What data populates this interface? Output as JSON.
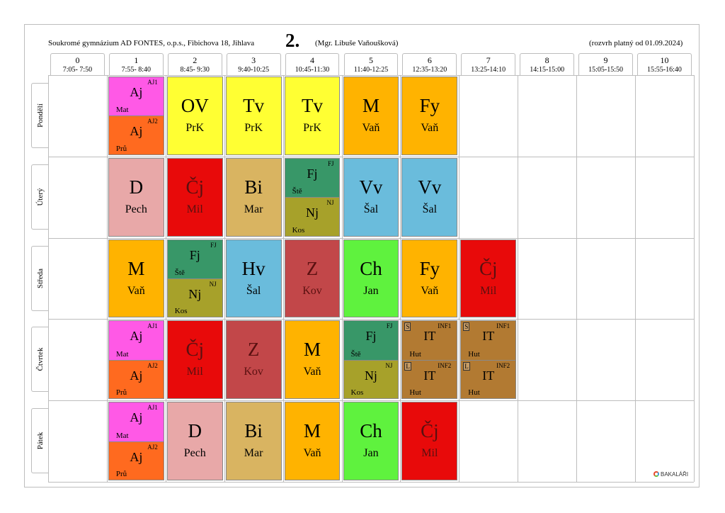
{
  "header": {
    "school": "Soukromé gymnázium AD FONTES, o.p.s., Fibichova 18, Jihlava",
    "class": "2.",
    "teacher": "(Mgr. Libuše Vaňoušková)",
    "valid_from": "(rozvrh platný od 01.09.2024)"
  },
  "periods": [
    {
      "num": "0",
      "time": "7:05- 7:50"
    },
    {
      "num": "1",
      "time": "7:55- 8:40"
    },
    {
      "num": "2",
      "time": "8:45- 9:30"
    },
    {
      "num": "3",
      "time": "9:40-10:25"
    },
    {
      "num": "4",
      "time": "10:45-11:30"
    },
    {
      "num": "5",
      "time": "11:40-12:25"
    },
    {
      "num": "6",
      "time": "12:35-13:20"
    },
    {
      "num": "7",
      "time": "13:25-14:10"
    },
    {
      "num": "8",
      "time": "14:15-15:00"
    },
    {
      "num": "9",
      "time": "15:05-15:50"
    },
    {
      "num": "10",
      "time": "15:55-16:40"
    }
  ],
  "days": [
    "Pondělí",
    "Úterý",
    "Středa",
    "Čtvrtek",
    "Pátek"
  ],
  "colors": {
    "Aj": "#ff59e6",
    "Aj2": "#ff6a1f",
    "OV": "#ffff33",
    "Tv": "#ffff33",
    "M": "#ffb300",
    "Fy": "#ffb300",
    "D": "#e8a8a8",
    "Cj": "#e80a0a",
    "Bi": "#d9b461",
    "Fj": "#389768",
    "Nj": "#a7a12a",
    "Vv": "#6abcdc",
    "Hv": "#6abcdc",
    "Z": "#c24749",
    "Ch": "#5ff23e",
    "IT": "#b27a32"
  },
  "schedule": [
    {
      "day": 0,
      "lessons": [
        {
          "period": 1,
          "color": "Aj",
          "type": "split",
          "top": {
            "group": "AJ1",
            "subject": "Aj",
            "teacher": "Mat",
            "color": "Aj"
          },
          "bottom": {
            "group": "AJ2",
            "subject": "Aj",
            "teacher": "Prů",
            "color": "Aj2"
          }
        },
        {
          "period": 2,
          "subject": "OV",
          "teacher": "PrK",
          "color": "OV"
        },
        {
          "period": 3,
          "subject": "Tv",
          "teacher": "PrK",
          "color": "Tv"
        },
        {
          "period": 4,
          "subject": "Tv",
          "teacher": "PrK",
          "color": "Tv"
        },
        {
          "period": 5,
          "subject": "M",
          "teacher": "Vaň",
          "color": "M"
        },
        {
          "period": 6,
          "subject": "Fy",
          "teacher": "Vaň",
          "color": "Fy"
        }
      ]
    },
    {
      "day": 1,
      "lessons": [
        {
          "period": 1,
          "subject": "D",
          "teacher": "Pech",
          "color": "D"
        },
        {
          "period": 2,
          "subject": "Čj",
          "teacher": "Mil",
          "color": "Cj",
          "darktext": true
        },
        {
          "period": 3,
          "subject": "Bi",
          "teacher": "Mar",
          "color": "Bi"
        },
        {
          "period": 4,
          "type": "split",
          "top": {
            "group": "FJ",
            "subject": "Fj",
            "teacher": "Ště",
            "color": "Fj"
          },
          "bottom": {
            "group": "NJ",
            "subject": "Nj",
            "teacher": "Kos",
            "color": "Nj"
          }
        },
        {
          "period": 5,
          "subject": "Vv",
          "teacher": "Šal",
          "color": "Vv"
        },
        {
          "period": 6,
          "subject": "Vv",
          "teacher": "Šal",
          "color": "Vv"
        }
      ]
    },
    {
      "day": 2,
      "lessons": [
        {
          "period": 1,
          "subject": "M",
          "teacher": "Vaň",
          "color": "M"
        },
        {
          "period": 2,
          "type": "split",
          "top": {
            "group": "FJ",
            "subject": "Fj",
            "teacher": "Ště",
            "color": "Fj"
          },
          "bottom": {
            "group": "NJ",
            "subject": "Nj",
            "teacher": "Kos",
            "color": "Nj"
          }
        },
        {
          "period": 3,
          "subject": "Hv",
          "teacher": "Šal",
          "color": "Hv"
        },
        {
          "period": 4,
          "subject": "Z",
          "teacher": "Kov",
          "color": "Z",
          "darktext": true
        },
        {
          "period": 5,
          "subject": "Ch",
          "teacher": "Jan",
          "color": "Ch"
        },
        {
          "period": 6,
          "subject": "Fy",
          "teacher": "Vaň",
          "color": "Fy"
        },
        {
          "period": 7,
          "subject": "Čj",
          "teacher": "Mil",
          "color": "Cj",
          "darktext": true
        }
      ]
    },
    {
      "day": 3,
      "lessons": [
        {
          "period": 1,
          "type": "split",
          "top": {
            "group": "AJ1",
            "subject": "Aj",
            "teacher": "Mat",
            "color": "Aj"
          },
          "bottom": {
            "group": "AJ2",
            "subject": "Aj",
            "teacher": "Prů",
            "color": "Aj2"
          }
        },
        {
          "period": 2,
          "subject": "Čj",
          "teacher": "Mil",
          "color": "Cj",
          "darktext": true
        },
        {
          "period": 3,
          "subject": "Z",
          "teacher": "Kov",
          "color": "Z",
          "darktext": true
        },
        {
          "period": 4,
          "subject": "M",
          "teacher": "Vaň",
          "color": "M"
        },
        {
          "period": 5,
          "type": "split",
          "top": {
            "group": "FJ",
            "subject": "Fj",
            "teacher": "Ště",
            "color": "Fj"
          },
          "bottom": {
            "group": "NJ",
            "subject": "Nj",
            "teacher": "Kos",
            "color": "Nj"
          }
        },
        {
          "period": 6,
          "type": "split",
          "top": {
            "room": "S",
            "group": "INF1",
            "subject": "IT",
            "teacher": "Hut",
            "color": "IT"
          },
          "bottom": {
            "room": "L",
            "group": "INF2",
            "subject": "IT",
            "teacher": "Hut",
            "color": "IT"
          }
        },
        {
          "period": 7,
          "type": "split",
          "top": {
            "room": "S",
            "group": "INF1",
            "subject": "IT",
            "teacher": "Hut",
            "color": "IT"
          },
          "bottom": {
            "room": "L",
            "group": "INF2",
            "subject": "IT",
            "teacher": "Hut",
            "color": "IT"
          }
        }
      ]
    },
    {
      "day": 4,
      "lessons": [
        {
          "period": 1,
          "type": "split",
          "top": {
            "group": "AJ1",
            "subject": "Aj",
            "teacher": "Mat",
            "color": "Aj"
          },
          "bottom": {
            "group": "AJ2",
            "subject": "Aj",
            "teacher": "Prů",
            "color": "Aj2"
          }
        },
        {
          "period": 2,
          "subject": "D",
          "teacher": "Pech",
          "color": "D"
        },
        {
          "period": 3,
          "subject": "Bi",
          "teacher": "Mar",
          "color": "Bi"
        },
        {
          "period": 4,
          "subject": "M",
          "teacher": "Vaň",
          "color": "M"
        },
        {
          "period": 5,
          "subject": "Ch",
          "teacher": "Jan",
          "color": "Ch"
        },
        {
          "period": 6,
          "subject": "Čj",
          "teacher": "Mil",
          "color": "Cj",
          "darktext": true
        }
      ]
    }
  ],
  "footer": {
    "logo_text": "BAKALÁŘI",
    "logo_icon": "bakalari-logo-icon"
  }
}
